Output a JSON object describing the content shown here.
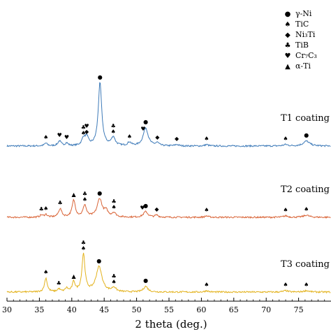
{
  "chart_data": {
    "type": "line",
    "title": "",
    "xlabel": "2 theta (deg.)",
    "ylabel": "",
    "xlim": [
      30,
      80
    ],
    "x_ticks": [
      30,
      35,
      40,
      45,
      50,
      55,
      60,
      65,
      70,
      75
    ],
    "grid": false,
    "legend_position": "top-right",
    "legend": [
      {
        "symbol": "●",
        "name": "γ-Ni"
      },
      {
        "symbol": "♠",
        "name": "TiC"
      },
      {
        "symbol": "◆",
        "name": "Ni₃Ti"
      },
      {
        "symbol": "♣",
        "name": "TiB"
      },
      {
        "symbol": "♥",
        "name": "Cr₇C₃"
      },
      {
        "symbol": "▲",
        "name": "α-Ti"
      }
    ],
    "series": [
      {
        "name": "T1 coating",
        "color": "#3d7ab8",
        "baseline": 0,
        "peaks": [
          {
            "x": 36.0,
            "h": 4,
            "w": 0.25
          },
          {
            "x": 38.1,
            "h": 7,
            "w": 0.3
          },
          {
            "x": 39.2,
            "h": 4,
            "w": 0.25
          },
          {
            "x": 41.8,
            "h": 10,
            "w": 0.3
          },
          {
            "x": 42.3,
            "h": 12,
            "w": 0.3
          },
          {
            "x": 44.35,
            "h": 90,
            "w": 0.32
          },
          {
            "x": 46.4,
            "h": 12,
            "w": 0.35
          },
          {
            "x": 48.9,
            "h": 5,
            "w": 0.3
          },
          {
            "x": 51.4,
            "h": 26,
            "w": 0.45
          },
          {
            "x": 53.2,
            "h": 4,
            "w": 0.3
          },
          {
            "x": 56.2,
            "h": 2,
            "w": 0.3
          },
          {
            "x": 60.8,
            "h": 2,
            "w": 0.3
          },
          {
            "x": 73.0,
            "h": 2,
            "w": 0.4
          },
          {
            "x": 76.2,
            "h": 7,
            "w": 0.6
          }
        ],
        "markers": [
          {
            "x": 36.0,
            "symbol": "♠",
            "h": 4
          },
          {
            "x": 38.1,
            "symbol": "♥",
            "h": 7
          },
          {
            "x": 39.2,
            "symbol": "♥",
            "h": 4
          },
          {
            "x": 41.8,
            "symbol": "♣♠",
            "h": 10
          },
          {
            "x": 42.3,
            "symbol": "♥◆",
            "h": 12
          },
          {
            "x": 44.35,
            "symbol": "●",
            "h": 90
          },
          {
            "x": 46.4,
            "symbol": "♣♠",
            "h": 12
          },
          {
            "x": 48.9,
            "symbol": "♠",
            "h": 5
          },
          {
            "x": 51.0,
            "symbol": "♥",
            "h": 16
          },
          {
            "x": 51.4,
            "symbol": "●",
            "h": 26
          },
          {
            "x": 53.2,
            "symbol": "◆",
            "h": 4
          },
          {
            "x": 56.2,
            "symbol": "◆",
            "h": 2
          },
          {
            "x": 60.8,
            "symbol": "♠",
            "h": 2
          },
          {
            "x": 73.0,
            "symbol": "♠",
            "h": 2
          },
          {
            "x": 76.2,
            "symbol": "●",
            "h": 7
          }
        ]
      },
      {
        "name": "T2 coating",
        "color": "#d96437",
        "baseline": 0,
        "peaks": [
          {
            "x": 35.3,
            "h": 3,
            "w": 0.25
          },
          {
            "x": 36.0,
            "h": 4,
            "w": 0.25
          },
          {
            "x": 38.2,
            "h": 12,
            "w": 0.3
          },
          {
            "x": 40.3,
            "h": 24,
            "w": 0.3
          },
          {
            "x": 42.0,
            "h": 17,
            "w": 0.3
          },
          {
            "x": 44.3,
            "h": 26,
            "w": 0.45
          },
          {
            "x": 45.3,
            "h": 8,
            "w": 0.35
          },
          {
            "x": 46.5,
            "h": 6,
            "w": 0.35
          },
          {
            "x": 51.4,
            "h": 8,
            "w": 0.4
          },
          {
            "x": 53.1,
            "h": 3,
            "w": 0.3
          },
          {
            "x": 60.8,
            "h": 2,
            "w": 0.3
          },
          {
            "x": 73.0,
            "h": 2,
            "w": 0.4
          },
          {
            "x": 76.2,
            "h": 3,
            "w": 0.5
          }
        ],
        "markers": [
          {
            "x": 35.3,
            "symbol": "♣",
            "h": 3
          },
          {
            "x": 36.0,
            "symbol": "♠",
            "h": 4
          },
          {
            "x": 38.2,
            "symbol": "♣",
            "h": 12
          },
          {
            "x": 40.3,
            "symbol": "▲",
            "h": 24
          },
          {
            "x": 42.0,
            "symbol": "♣♠",
            "h": 17
          },
          {
            "x": 44.3,
            "symbol": "●",
            "h": 26
          },
          {
            "x": 46.5,
            "symbol": "♣♠",
            "h": 6
          },
          {
            "x": 50.9,
            "symbol": "♥",
            "h": 5
          },
          {
            "x": 51.4,
            "symbol": "●",
            "h": 8
          },
          {
            "x": 53.1,
            "symbol": "◆",
            "h": 3
          },
          {
            "x": 60.8,
            "symbol": "♠",
            "h": 2
          },
          {
            "x": 73.0,
            "symbol": "♠",
            "h": 2
          },
          {
            "x": 76.2,
            "symbol": "♠",
            "h": 3
          }
        ]
      },
      {
        "name": "T3 coating",
        "color": "#e3b21c",
        "baseline": 0,
        "peaks": [
          {
            "x": 36.0,
            "h": 20,
            "w": 0.25
          },
          {
            "x": 38.0,
            "h": 4,
            "w": 0.25
          },
          {
            "x": 39.2,
            "h": 5,
            "w": 0.25
          },
          {
            "x": 40.3,
            "h": 14,
            "w": 0.25
          },
          {
            "x": 41.8,
            "h": 54,
            "w": 0.28
          },
          {
            "x": 44.2,
            "h": 36,
            "w": 0.55
          },
          {
            "x": 46.5,
            "h": 6,
            "w": 0.35
          },
          {
            "x": 51.4,
            "h": 8,
            "w": 0.4
          },
          {
            "x": 60.8,
            "h": 2,
            "w": 0.3
          },
          {
            "x": 73.0,
            "h": 2,
            "w": 0.4
          },
          {
            "x": 76.2,
            "h": 2,
            "w": 0.5
          }
        ],
        "markers": [
          {
            "x": 36.0,
            "symbol": "♠",
            "h": 20
          },
          {
            "x": 38.0,
            "symbol": "♣",
            "h": 4
          },
          {
            "x": 40.3,
            "symbol": "▲",
            "h": 14
          },
          {
            "x": 41.8,
            "symbol": "♣♠",
            "h": 54
          },
          {
            "x": 44.2,
            "symbol": "●",
            "h": 36
          },
          {
            "x": 46.5,
            "symbol": "♣♠",
            "h": 6
          },
          {
            "x": 51.4,
            "symbol": "●",
            "h": 8
          },
          {
            "x": 60.8,
            "symbol": "♠",
            "h": 2
          },
          {
            "x": 73.0,
            "symbol": "♠",
            "h": 2
          },
          {
            "x": 76.2,
            "symbol": "♠",
            "h": 2
          }
        ]
      }
    ]
  }
}
